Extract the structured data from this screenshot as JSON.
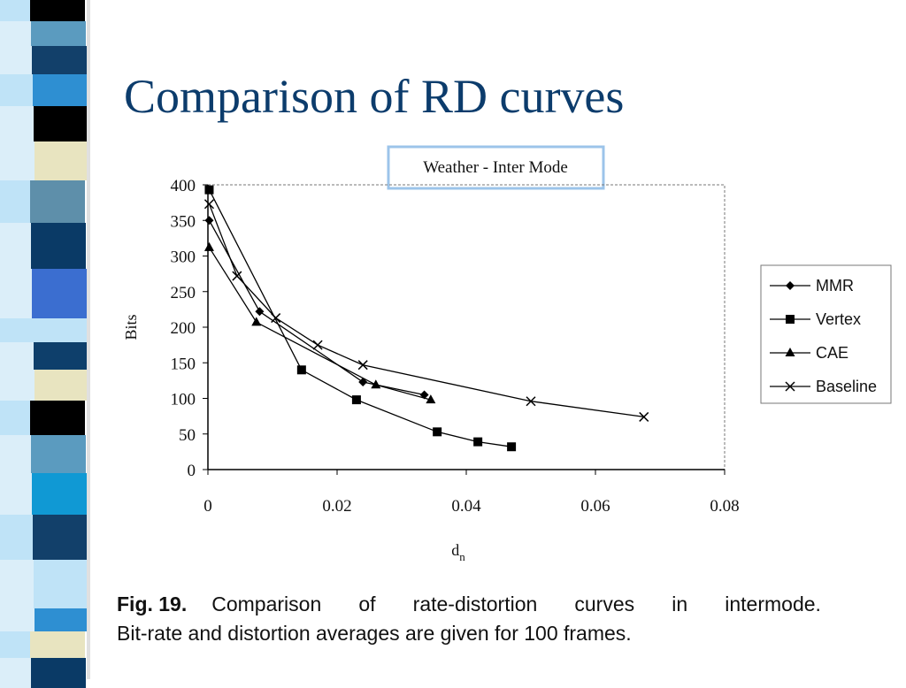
{
  "slide": {
    "title": "Comparison of RD curves"
  },
  "caption": {
    "label": "Fig. 19.",
    "line1": "Comparison of rate-distortion curves in intermode.",
    "line2": "Bit-rate and distortion averages are given for 100 frames."
  },
  "colors": {
    "title": "#0c3c6c",
    "chart_title_border": "#9cc4ea",
    "series_line": "#000000"
  },
  "chart_data": {
    "type": "line",
    "title": "Weather - Inter Mode",
    "xlabel": "d",
    "xlabel_subscript": "n",
    "ylabel": "Bits",
    "xlim": [
      0,
      0.08
    ],
    "ylim": [
      0,
      400
    ],
    "x_ticks": [
      "0",
      "0.02",
      "0.04",
      "0.06",
      "0.08"
    ],
    "y_ticks": [
      "0",
      "50",
      "100",
      "150",
      "200",
      "250",
      "300",
      "350",
      "400"
    ],
    "grid": false,
    "legend_position": "right",
    "series": [
      {
        "name": "MMR",
        "marker": "diamond",
        "x": [
          0.0002,
          0.008,
          0.024,
          0.0335
        ],
        "y": [
          350,
          222,
          123,
          105
        ]
      },
      {
        "name": "Vertex",
        "marker": "square",
        "x": [
          0.0002,
          0.0145,
          0.023,
          0.0355,
          0.0418,
          0.047
        ],
        "y": [
          393,
          140,
          98,
          53,
          39,
          32
        ]
      },
      {
        "name": "CAE",
        "marker": "triangle",
        "x": [
          0.0002,
          0.0075,
          0.026,
          0.0345
        ],
        "y": [
          312,
          207,
          119,
          98
        ]
      },
      {
        "name": "Baseline",
        "marker": "x",
        "x": [
          0.0002,
          0.0045,
          0.0105,
          0.017,
          0.024,
          0.05,
          0.0675
        ],
        "y": [
          373,
          272,
          213,
          175,
          147,
          96,
          74
        ]
      }
    ]
  }
}
